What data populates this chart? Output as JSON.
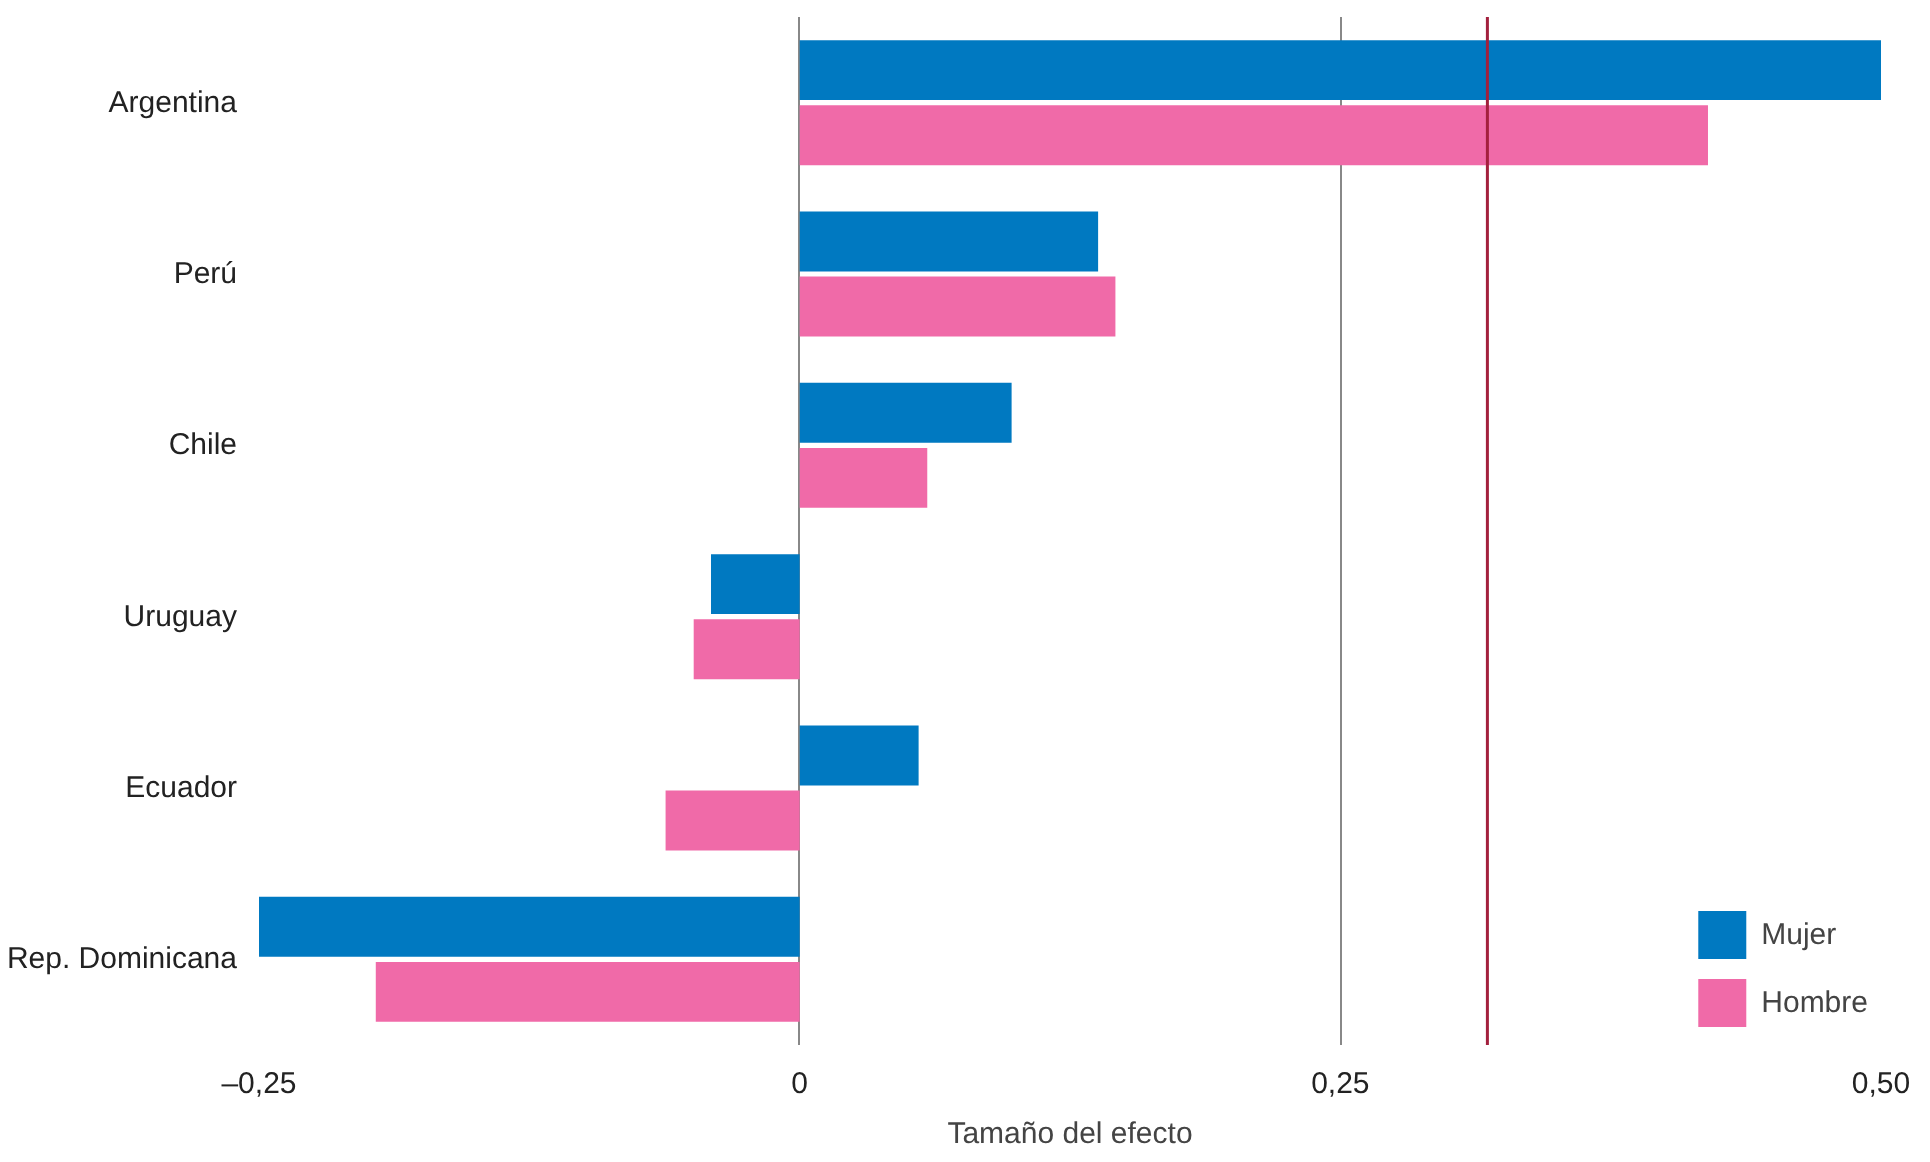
{
  "chart_data": {
    "type": "bar",
    "orientation": "horizontal",
    "xlabel": "Tamaño del efecto",
    "categories": [
      "Argentina",
      "Perú",
      "Chile",
      "Uruguay",
      "Ecuador",
      "Rep. Dominicana"
    ],
    "series": [
      {
        "name": "Mujer",
        "color": "#0079c1",
        "values": [
          0.5,
          0.138,
          0.098,
          -0.041,
          0.055,
          -0.25
        ]
      },
      {
        "name": "Hombre",
        "color": "#f06aa8",
        "values": [
          0.42,
          0.146,
          0.059,
          -0.049,
          -0.062,
          -0.196
        ]
      }
    ],
    "xlim": [
      -0.25,
      0.5
    ],
    "xticks": [
      {
        "value": -0.25,
        "label": "–0,25"
      },
      {
        "value": 0,
        "label": "0"
      },
      {
        "value": 0.25,
        "label": "0,25"
      },
      {
        "value": 0.5,
        "label": "0,50"
      }
    ],
    "ref_lines": [
      {
        "axis": "x",
        "value": 0.318,
        "color": "#a3203d"
      }
    ],
    "grid": "x",
    "legend": "bottom right"
  }
}
